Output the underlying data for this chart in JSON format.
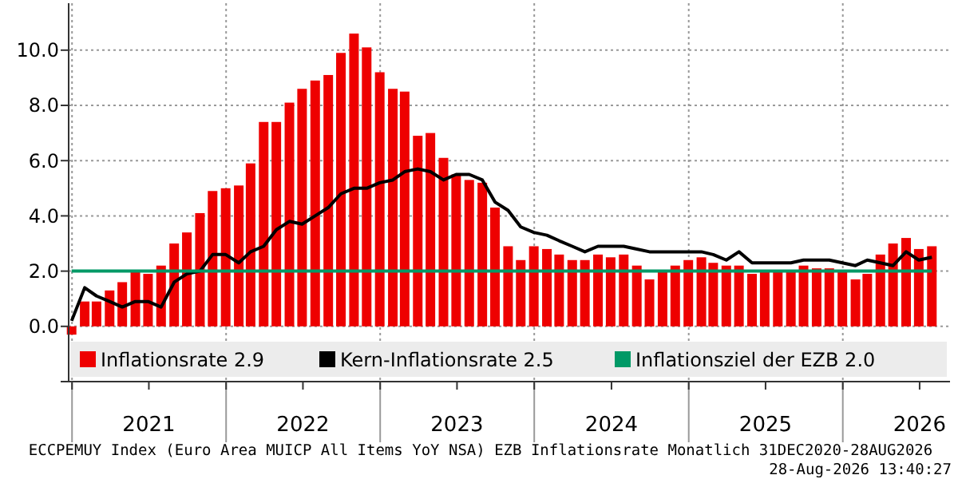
{
  "chart_data": {
    "type": "bar",
    "x": [
      "2020-12-31",
      "2021-01-31",
      "2021-02-28",
      "2021-03-31",
      "2021-04-30",
      "2021-05-31",
      "2021-06-30",
      "2021-07-31",
      "2021-08-31",
      "2021-09-30",
      "2021-10-31",
      "2021-11-30",
      "2021-12-31",
      "2022-01-31",
      "2022-02-28",
      "2022-03-31",
      "2022-04-30",
      "2022-05-31",
      "2022-06-30",
      "2022-07-31",
      "2022-08-31",
      "2022-09-30",
      "2022-10-31",
      "2022-11-30",
      "2022-12-31",
      "2023-01-31",
      "2023-02-28",
      "2023-03-31",
      "2023-04-30",
      "2023-05-31",
      "2023-06-30",
      "2023-07-31",
      "2023-08-31",
      "2023-09-30",
      "2023-10-31",
      "2023-11-30",
      "2023-12-31",
      "2024-01-31",
      "2024-02-29",
      "2024-03-31",
      "2024-04-30",
      "2024-05-31",
      "2024-06-30",
      "2024-07-31",
      "2024-08-31",
      "2024-09-30",
      "2024-10-31",
      "2024-11-30",
      "2024-12-31",
      "2025-01-31",
      "2025-02-28",
      "2025-03-31",
      "2025-04-30",
      "2025-05-31",
      "2025-06-30",
      "2025-07-31",
      "2025-08-31",
      "2025-09-30",
      "2025-10-31",
      "2025-11-30",
      "2025-12-31",
      "2026-01-31",
      "2026-02-28",
      "2026-03-31",
      "2026-04-30",
      "2026-05-31",
      "2026-06-30",
      "2026-07-31"
    ],
    "series": [
      {
        "name": "Inflationsrate 2.9",
        "color": "#ee0000",
        "values": [
          -0.3,
          0.9,
          0.9,
          1.3,
          1.6,
          2.0,
          1.9,
          2.2,
          3.0,
          3.4,
          4.1,
          4.9,
          5.0,
          5.1,
          5.9,
          7.4,
          7.4,
          8.1,
          8.6,
          8.9,
          9.1,
          9.9,
          10.6,
          10.1,
          9.2,
          8.6,
          8.5,
          6.9,
          7.0,
          6.1,
          5.5,
          5.3,
          5.2,
          4.3,
          2.9,
          2.4,
          2.9,
          2.8,
          2.6,
          2.4,
          2.4,
          2.6,
          2.5,
          2.6,
          2.2,
          1.7,
          2.0,
          2.2,
          2.4,
          2.5,
          2.3,
          2.2,
          2.2,
          1.9,
          2.0,
          2.0,
          2.0,
          2.2,
          2.1,
          2.1,
          2.0,
          1.7,
          1.9,
          2.6,
          3.0,
          3.2,
          2.8,
          2.9
        ]
      },
      {
        "name": "Kern-Inflationsrate 2.5",
        "type": "line",
        "color": "#000000",
        "values": [
          0.2,
          1.4,
          1.1,
          0.9,
          0.7,
          0.9,
          0.9,
          0.7,
          1.6,
          1.9,
          2.0,
          2.6,
          2.6,
          2.3,
          2.7,
          2.9,
          3.5,
          3.8,
          3.7,
          4.0,
          4.3,
          4.8,
          5.0,
          5.0,
          5.2,
          5.3,
          5.6,
          5.7,
          5.6,
          5.3,
          5.5,
          5.5,
          5.3,
          4.5,
          4.2,
          3.6,
          3.4,
          3.3,
          3.1,
          2.9,
          2.7,
          2.9,
          2.9,
          2.9,
          2.8,
          2.7,
          2.7,
          2.7,
          2.7,
          2.7,
          2.6,
          2.4,
          2.7,
          2.3,
          2.3,
          2.3,
          2.3,
          2.4,
          2.4,
          2.4,
          2.3,
          2.2,
          2.4,
          2.3,
          2.2,
          2.7,
          2.4,
          2.5
        ]
      },
      {
        "name": "Inflationsziel der EZB 2.0",
        "type": "line",
        "color": "#009966",
        "x": [
          "2020-12-31",
          "2026-07-31"
        ],
        "values": [
          2.0,
          2.0
        ]
      }
    ],
    "xlim": [
      "2020-12-24",
      "2026-09-12"
    ],
    "xticks": [
      {
        "value": "2021-01-01",
        "label": null
      },
      {
        "value": "2021-07-02",
        "label": "2021"
      },
      {
        "value": "2022-01-01",
        "label": null
      },
      {
        "value": "2022-07-02",
        "label": "2022"
      },
      {
        "value": "2023-01-01",
        "label": null
      },
      {
        "value": "2023-07-02",
        "label": "2023"
      },
      {
        "value": "2024-01-01",
        "label": null
      },
      {
        "value": "2024-07-02",
        "label": "2024"
      },
      {
        "value": "2025-01-01",
        "label": null
      },
      {
        "value": "2025-07-02",
        "label": "2025"
      },
      {
        "value": "2026-01-01",
        "label": null
      },
      {
        "value": "2026-07-02",
        "label": "2026"
      }
    ],
    "ylim": [
      -2,
      11.7
    ],
    "yticks": [
      {
        "value": -2,
        "label": null
      },
      {
        "value": 0,
        "label": "0.0"
      },
      {
        "value": 2,
        "label": "2.0"
      },
      {
        "value": 4,
        "label": "4.0"
      },
      {
        "value": 6,
        "label": "6.0"
      },
      {
        "value": 8,
        "label": "8.0"
      },
      {
        "value": 10,
        "label": "10.0"
      }
    ],
    "grid": true,
    "legend": "bottom right",
    "annotations": [
      "ECCPEMUY Index (Euro Area MUICP All Items YoY NSA) EZB Inflationsrate Monatlich 31DEC2020-28AUG2026",
      "28-Aug-2026 13:40:27"
    ]
  }
}
